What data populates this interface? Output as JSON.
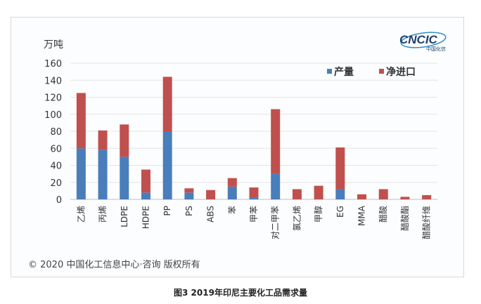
{
  "chart_data": {
    "type": "bar",
    "stacked": true,
    "ylabel": "万吨",
    "ylim": [
      0,
      160
    ],
    "yticks": [
      0,
      20,
      40,
      60,
      80,
      100,
      120,
      140,
      160
    ],
    "grid": true,
    "legend_position": "top-right",
    "categories": [
      "乙烯",
      "丙烯",
      "LDPE",
      "HDPE",
      "PP",
      "PS",
      "ABS",
      "苯",
      "甲苯",
      "对二甲苯",
      "氯乙烯",
      "甲醇",
      "EG",
      "MMA",
      "醋酸",
      "醋酸酯",
      "醋酸纤维"
    ],
    "series": [
      {
        "name": "产量",
        "color": "#4a7ebb",
        "values": [
          60,
          58,
          50,
          8,
          80,
          8,
          0,
          15,
          2,
          30,
          0,
          0,
          12,
          0,
          0,
          0,
          0
        ]
      },
      {
        "name": "净进口",
        "color": "#c0504d",
        "values": [
          65,
          23,
          38,
          27,
          64,
          5,
          11,
          10,
          12,
          76,
          12,
          16,
          49,
          6,
          12,
          3,
          5
        ]
      }
    ]
  },
  "logo": {
    "text": "CNCIC",
    "subtext": "中国化信"
  },
  "copyright": "© 2020 中国化工信息中心·咨询 版权所有",
  "caption": "图3 2019年印尼主要化工品需求量"
}
